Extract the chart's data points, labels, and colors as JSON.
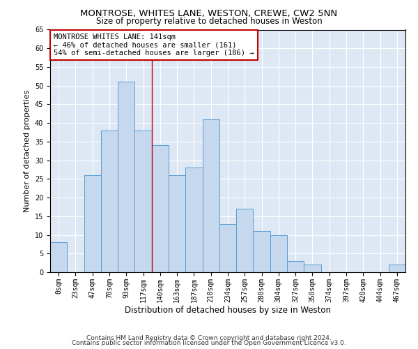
{
  "title1": "MONTROSE, WHITES LANE, WESTON, CREWE, CW2 5NN",
  "title2": "Size of property relative to detached houses in Weston",
  "xlabel": "Distribution of detached houses by size in Weston",
  "ylabel": "Number of detached properties",
  "categories": [
    "0sqm",
    "23sqm",
    "47sqm",
    "70sqm",
    "93sqm",
    "117sqm",
    "140sqm",
    "163sqm",
    "187sqm",
    "210sqm",
    "234sqm",
    "257sqm",
    "280sqm",
    "304sqm",
    "327sqm",
    "350sqm",
    "374sqm",
    "397sqm",
    "420sqm",
    "444sqm",
    "467sqm"
  ],
  "values": [
    8,
    0,
    26,
    38,
    51,
    38,
    34,
    26,
    28,
    41,
    13,
    17,
    11,
    10,
    3,
    2,
    0,
    0,
    0,
    0,
    2
  ],
  "bar_color": "#c5d8ed",
  "bar_edge_color": "#5b9bd5",
  "vline_x": 5.5,
  "vline_color": "#c00000",
  "annotation_text": "MONTROSE WHITES LANE: 141sqm\n← 46% of detached houses are smaller (161)\n54% of semi-detached houses are larger (186) →",
  "annotation_box_color": "#c00000",
  "annotation_bg": "white",
  "ylim": [
    0,
    65
  ],
  "yticks": [
    0,
    5,
    10,
    15,
    20,
    25,
    30,
    35,
    40,
    45,
    50,
    55,
    60,
    65
  ],
  "background_color": "#dde8f4",
  "footer1": "Contains HM Land Registry data © Crown copyright and database right 2024.",
  "footer2": "Contains public sector information licensed under the Open Government Licence v3.0.",
  "title1_fontsize": 9.5,
  "title2_fontsize": 8.5,
  "xlabel_fontsize": 8.5,
  "ylabel_fontsize": 8,
  "tick_fontsize": 7,
  "annotation_fontsize": 7.5,
  "footer_fontsize": 6.5
}
